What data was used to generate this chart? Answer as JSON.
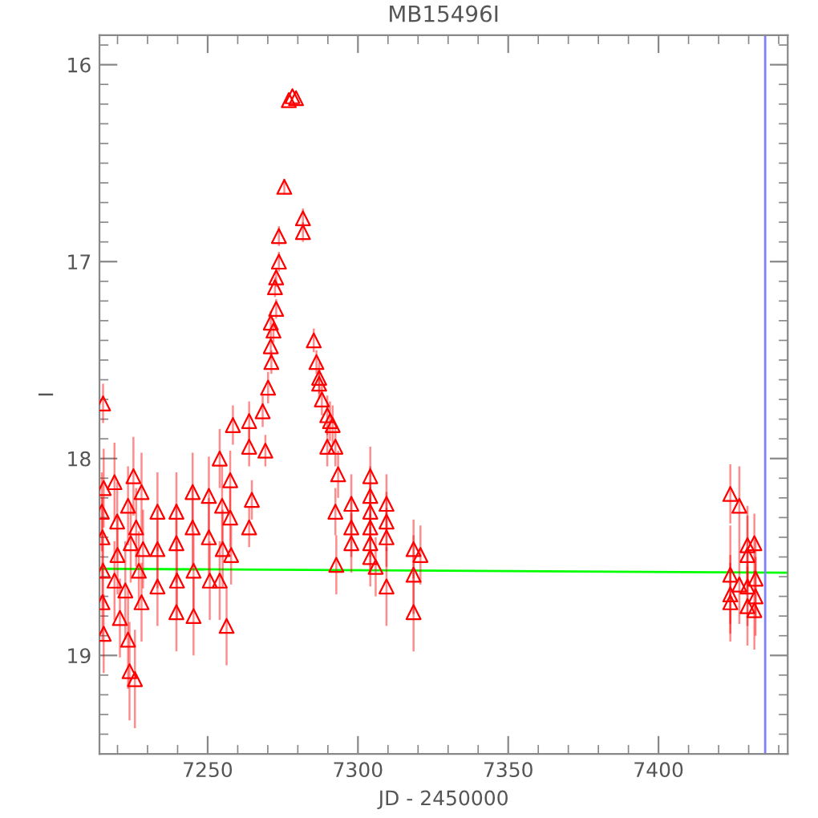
{
  "chart_data": {
    "type": "scatter",
    "title": "MB15496I",
    "xlabel": "JD - 2450000",
    "ylabel": "I",
    "xlim": [
      7214,
      7443
    ],
    "ylim": [
      19.5,
      15.85
    ],
    "xticks": [
      7250,
      7300,
      7350,
      7400
    ],
    "yticks": [
      16,
      17,
      18,
      19
    ],
    "grid": false,
    "legend": false,
    "series": [
      {
        "color": "#ff0000",
        "marker": "triangle",
        "x": [
          7215.2,
          7215.4,
          7214.8,
          7215.0,
          7215.2,
          7215.0,
          7215.4,
          7219.0,
          7219.9,
          7220.0,
          7219.0,
          7220.8,
          7223.5,
          7224.4,
          7222.6,
          7223.5,
          7224.0,
          7225.3,
          7225.8,
          7226.2,
          7227.1,
          7228.0,
          7228.0,
          7228.5,
          7233.3,
          7233.3,
          7233.3,
          7239.6,
          7239.6,
          7239.8,
          7239.6,
          7245.0,
          7245.0,
          7245.3,
          7245.3,
          7250.4,
          7250.4,
          7250.7,
          7254.0,
          7254.8,
          7255.0,
          7254.0,
          7256.3,
          7257.5,
          7257.5,
          7257.8,
          7258.4,
          7263.8,
          7263.8,
          7264.7,
          7263.8,
          7268.3,
          7270.1,
          7269.2,
          7271.0,
          7271.2,
          7271.9,
          7271.0,
          7272.8,
          7272.4,
          7272.8,
          7273.7,
          7273.7,
          7275.5,
          7277.0,
          7278.2,
          7279.4,
          7281.7,
          7281.7,
          7285.3,
          7286.2,
          7287.1,
          7287.1,
          7288.0,
          7289.8,
          7289.8,
          7290.7,
          7291.6,
          7292.5,
          7293.4,
          7292.5,
          7292.8,
          7297.8,
          7297.8,
          7297.8,
          7304.1,
          7304.1,
          7304.1,
          7304.1,
          7304.1,
          7304.1,
          7305.9,
          7309.5,
          7309.5,
          7309.5,
          7309.5,
          7318.5,
          7320.8,
          7318.5,
          7318.5,
          7423.9,
          7426.9,
          7429.6,
          7431.9,
          7429.6,
          7423.9,
          7426.9,
          7423.9,
          7423.9,
          7432.3,
          7429.6,
          7432.3,
          7429.6,
          7431.9
        ],
        "values": [
          17.72,
          18.15,
          18.27,
          18.4,
          18.57,
          18.73,
          18.89,
          18.12,
          18.32,
          18.49,
          18.62,
          18.81,
          18.24,
          18.43,
          18.67,
          18.92,
          19.08,
          18.09,
          19.12,
          18.35,
          18.57,
          18.17,
          18.73,
          18.46,
          18.27,
          18.46,
          18.65,
          18.27,
          18.43,
          18.62,
          18.78,
          18.17,
          18.35,
          18.57,
          18.8,
          18.19,
          18.4,
          18.62,
          18.0,
          18.24,
          18.46,
          18.62,
          18.85,
          18.11,
          18.3,
          18.49,
          17.83,
          17.81,
          17.94,
          18.21,
          18.35,
          17.76,
          17.64,
          17.96,
          17.43,
          17.51,
          17.35,
          17.31,
          17.24,
          17.13,
          17.08,
          17.0,
          16.87,
          16.62,
          16.18,
          16.16,
          16.17,
          16.78,
          16.85,
          17.4,
          17.51,
          17.62,
          17.59,
          17.7,
          17.78,
          17.94,
          17.81,
          17.83,
          17.94,
          18.08,
          18.27,
          18.54,
          18.23,
          18.35,
          18.43,
          18.09,
          18.19,
          18.27,
          18.35,
          18.43,
          18.5,
          18.55,
          18.23,
          18.32,
          18.4,
          18.65,
          18.46,
          18.49,
          18.59,
          18.78,
          18.18,
          18.24,
          18.44,
          18.43,
          18.49,
          18.59,
          18.64,
          18.69,
          18.73,
          18.61,
          18.65,
          18.7,
          18.75,
          18.77
        ],
        "errors": [
          0.1,
          0.2,
          0.2,
          0.2,
          0.2,
          0.2,
          0.2,
          0.2,
          0.2,
          0.2,
          0.2,
          0.2,
          0.2,
          0.2,
          0.25,
          0.25,
          0.25,
          0.2,
          0.25,
          0.2,
          0.2,
          0.2,
          0.2,
          0.2,
          0.2,
          0.2,
          0.2,
          0.2,
          0.2,
          0.2,
          0.2,
          0.2,
          0.2,
          0.2,
          0.2,
          0.2,
          0.2,
          0.2,
          0.15,
          0.2,
          0.2,
          0.2,
          0.2,
          0.15,
          0.15,
          0.15,
          0.1,
          0.1,
          0.1,
          0.1,
          0.1,
          0.08,
          0.08,
          0.08,
          0.06,
          0.06,
          0.06,
          0.06,
          0.05,
          0.05,
          0.05,
          0.05,
          0.05,
          0.04,
          null,
          null,
          null,
          0.05,
          0.05,
          0.06,
          0.06,
          0.08,
          0.08,
          0.08,
          0.1,
          0.1,
          0.1,
          0.1,
          0.1,
          0.12,
          0.12,
          0.15,
          0.15,
          0.15,
          0.15,
          0.15,
          0.15,
          0.15,
          0.15,
          0.15,
          0.15,
          0.15,
          0.15,
          0.15,
          0.15,
          0.2,
          0.15,
          0.15,
          0.2,
          0.2,
          0.15,
          0.2,
          0.2,
          0.15,
          0.2,
          0.25,
          0.2,
          0.2,
          0.2,
          0.2,
          0.2,
          0.2,
          0.2,
          0.2
        ]
      },
      {
        "type": "line",
        "color": "#00ff00",
        "line_style": "solid",
        "marker": "none",
        "x": [
          7214,
          7443
        ],
        "values": [
          18.56,
          18.58
        ]
      }
    ],
    "ref_lines": [
      {
        "axis": "x",
        "value": 7435.5,
        "color": "#8080ff",
        "line_style": "solid"
      }
    ]
  }
}
